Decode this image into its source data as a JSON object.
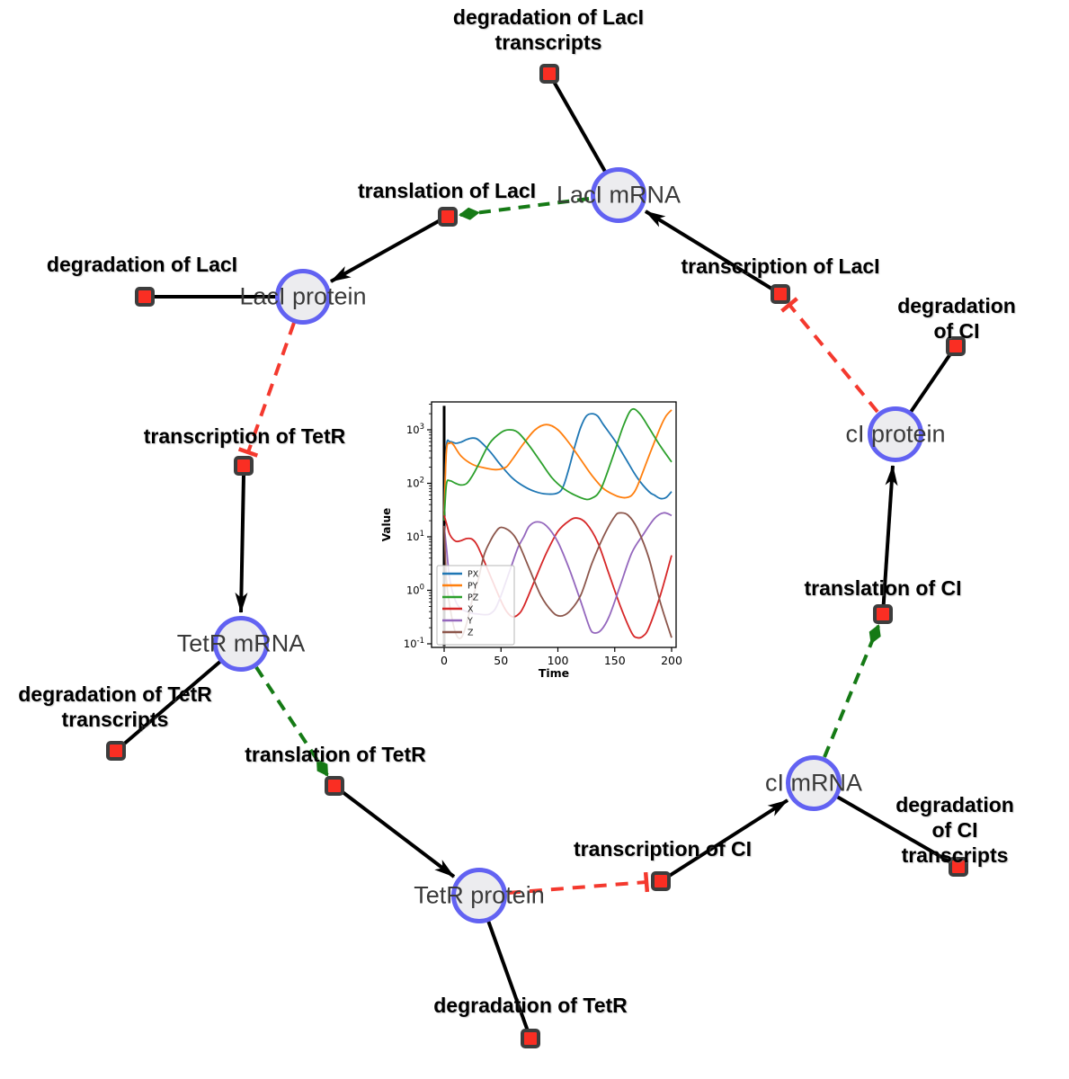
{
  "diagram": {
    "species": [
      {
        "id": "laci-mrna",
        "label": "LacI mRNA"
      },
      {
        "id": "laci-protein",
        "label": "LacI protein"
      },
      {
        "id": "tetr-mrna",
        "label": "TetR mRNA"
      },
      {
        "id": "tetr-protein",
        "label": "TetR protein"
      },
      {
        "id": "ci-mrna",
        "label": "cI mRNA"
      },
      {
        "id": "ci-protein",
        "label": "cI protein"
      }
    ],
    "reactions": [
      {
        "id": "degradation-laci-transcripts",
        "label": "degradation of LacI\ntranscripts"
      },
      {
        "id": "translation-laci",
        "label": "translation of LacI"
      },
      {
        "id": "degradation-laci",
        "label": "degradation of LacI"
      },
      {
        "id": "transcription-laci",
        "label": "transcription of LacI"
      },
      {
        "id": "degradation-ci",
        "label": "degradation of CI"
      },
      {
        "id": "transcription-tetr",
        "label": "transcription of TetR"
      },
      {
        "id": "degradation-tetr-transcripts",
        "label": "degradation of TetR\ntranscripts"
      },
      {
        "id": "translation-tetr",
        "label": "translation of TetR"
      },
      {
        "id": "degradation-tetr",
        "label": "degradation of TetR"
      },
      {
        "id": "transcription-ci",
        "label": "transcription of CI"
      },
      {
        "id": "degradation-ci-transcripts",
        "label": "degradation of CI\ntranscripts"
      },
      {
        "id": "translation-ci",
        "label": "translation of CI"
      }
    ],
    "colors": {
      "species_fill": "#ececef",
      "species_border": "#6262f2",
      "reaction_fill": "#fa2e23",
      "reaction_border": "#3d3d3d",
      "plain_edge": "#000000",
      "activation_edge": "#157a15",
      "inhibition_edge": "#f4392e"
    }
  },
  "chart_data": {
    "type": "line",
    "title": "",
    "xlabel": "Time",
    "ylabel": "Value",
    "x_ticks": [
      0,
      50,
      100,
      150,
      200
    ],
    "xlim": [
      -10,
      210
    ],
    "y_scale": "log",
    "y_tick_exponents": [
      3,
      2,
      1,
      0,
      -1
    ],
    "ylim": [
      0.085,
      3300
    ],
    "grid": false,
    "legend_position": "lower left",
    "time_zero_marker": {
      "t": 0,
      "from": 0.09,
      "to": 2800,
      "color": "#000000"
    },
    "series": [
      {
        "name": "PX",
        "color": "#1f77b4",
        "points": [
          [
            0,
            30
          ],
          [
            2,
            480
          ],
          [
            5,
            600
          ],
          [
            10,
            560
          ],
          [
            15,
            590
          ],
          [
            20,
            660
          ],
          [
            25,
            700
          ],
          [
            30,
            650
          ],
          [
            40,
            400
          ],
          [
            50,
            215
          ],
          [
            60,
            125
          ],
          [
            70,
            88
          ],
          [
            80,
            70
          ],
          [
            90,
            63
          ],
          [
            100,
            66
          ],
          [
            105,
            90
          ],
          [
            110,
            200
          ],
          [
            115,
            500
          ],
          [
            120,
            1100
          ],
          [
            125,
            1800
          ],
          [
            130,
            2000
          ],
          [
            135,
            1800
          ],
          [
            140,
            1250
          ],
          [
            150,
            630
          ],
          [
            160,
            280
          ],
          [
            170,
            125
          ],
          [
            180,
            70
          ],
          [
            185,
            60
          ],
          [
            190,
            52
          ],
          [
            195,
            54
          ],
          [
            200,
            70
          ]
        ]
      },
      {
        "name": "PY",
        "color": "#ff7f0e",
        "points": [
          [
            0,
            25
          ],
          [
            2,
            400
          ],
          [
            5,
            560
          ],
          [
            8,
            530
          ],
          [
            15,
            320
          ],
          [
            25,
            225
          ],
          [
            35,
            195
          ],
          [
            45,
            180
          ],
          [
            50,
            185
          ],
          [
            55,
            205
          ],
          [
            60,
            280
          ],
          [
            70,
            560
          ],
          [
            80,
            1000
          ],
          [
            90,
            1250
          ],
          [
            100,
            1000
          ],
          [
            110,
            560
          ],
          [
            120,
            280
          ],
          [
            130,
            140
          ],
          [
            140,
            80
          ],
          [
            150,
            60
          ],
          [
            155,
            55
          ],
          [
            160,
            54
          ],
          [
            165,
            60
          ],
          [
            170,
            90
          ],
          [
            180,
            320
          ],
          [
            190,
            1100
          ],
          [
            195,
            1800
          ],
          [
            200,
            2350
          ]
        ]
      },
      {
        "name": "PZ",
        "color": "#2ca02c",
        "points": [
          [
            0,
            20
          ],
          [
            2,
            95
          ],
          [
            5,
            112
          ],
          [
            10,
            100
          ],
          [
            15,
            93
          ],
          [
            20,
            100
          ],
          [
            25,
            140
          ],
          [
            30,
            220
          ],
          [
            40,
            560
          ],
          [
            50,
            890
          ],
          [
            57,
            1000
          ],
          [
            65,
            890
          ],
          [
            75,
            500
          ],
          [
            85,
            250
          ],
          [
            95,
            125
          ],
          [
            105,
            80
          ],
          [
            115,
            60
          ],
          [
            125,
            50
          ],
          [
            130,
            53
          ],
          [
            135,
            63
          ],
          [
            140,
            100
          ],
          [
            150,
            400
          ],
          [
            158,
            1250
          ],
          [
            165,
            2400
          ],
          [
            172,
            2000
          ],
          [
            180,
            1100
          ],
          [
            190,
            500
          ],
          [
            200,
            250
          ]
        ]
      },
      {
        "name": "X",
        "color": "#d62728",
        "points": [
          [
            0,
            25
          ],
          [
            2,
            18
          ],
          [
            5,
            11
          ],
          [
            10,
            8.3
          ],
          [
            15,
            8.5
          ],
          [
            20,
            9.3
          ],
          [
            25,
            8.9
          ],
          [
            30,
            6.3
          ],
          [
            40,
            2
          ],
          [
            50,
            0.63
          ],
          [
            55,
            0.4
          ],
          [
            60,
            0.32
          ],
          [
            65,
            0.35
          ],
          [
            70,
            0.5
          ],
          [
            80,
            1.6
          ],
          [
            90,
            5
          ],
          [
            100,
            12.6
          ],
          [
            110,
            20
          ],
          [
            117,
            22.4
          ],
          [
            125,
            17.8
          ],
          [
            135,
            7.9
          ],
          [
            145,
            2
          ],
          [
            155,
            0.5
          ],
          [
            165,
            0.16
          ],
          [
            170,
            0.13
          ],
          [
            175,
            0.14
          ],
          [
            180,
            0.2
          ],
          [
            190,
            0.8
          ],
          [
            200,
            4.5
          ]
        ]
      },
      {
        "name": "Y",
        "color": "#9467bd",
        "points": [
          [
            0,
            16
          ],
          [
            2,
            6.3
          ],
          [
            5,
            1.6
          ],
          [
            10,
            0.63
          ],
          [
            15,
            0.45
          ],
          [
            20,
            0.4
          ],
          [
            25,
            0.37
          ],
          [
            30,
            0.36
          ],
          [
            35,
            0.35
          ],
          [
            40,
            0.36
          ],
          [
            45,
            0.45
          ],
          [
            50,
            0.8
          ],
          [
            55,
            1.6
          ],
          [
            60,
            3.2
          ],
          [
            65,
            6.3
          ],
          [
            70,
            10
          ],
          [
            75,
            16
          ],
          [
            82,
            19
          ],
          [
            90,
            16
          ],
          [
            100,
            8
          ],
          [
            110,
            2.5
          ],
          [
            120,
            0.63
          ],
          [
            128,
            0.2
          ],
          [
            132,
            0.16
          ],
          [
            138,
            0.18
          ],
          [
            145,
            0.32
          ],
          [
            155,
            1.26
          ],
          [
            165,
            5
          ],
          [
            175,
            11
          ],
          [
            185,
            22
          ],
          [
            193,
            28
          ],
          [
            200,
            25
          ]
        ]
      },
      {
        "name": "Z",
        "color": "#8c564b",
        "points": [
          [
            0,
            16
          ],
          [
            2,
            1.6
          ],
          [
            5,
            0.5
          ],
          [
            10,
            0.16
          ],
          [
            15,
            0.13
          ],
          [
            20,
            0.25
          ],
          [
            25,
            0.7
          ],
          [
            30,
            1.6
          ],
          [
            35,
            4.5
          ],
          [
            40,
            7.9
          ],
          [
            45,
            12
          ],
          [
            50,
            15
          ],
          [
            58,
            12.6
          ],
          [
            65,
            7.9
          ],
          [
            75,
            2.5
          ],
          [
            85,
            0.8
          ],
          [
            95,
            0.4
          ],
          [
            102,
            0.33
          ],
          [
            110,
            0.4
          ],
          [
            120,
            0.8
          ],
          [
            130,
            3.2
          ],
          [
            140,
            10
          ],
          [
            150,
            24
          ],
          [
            155,
            28
          ],
          [
            162,
            25
          ],
          [
            170,
            14
          ],
          [
            180,
            4
          ],
          [
            190,
            0.6
          ],
          [
            200,
            0.13
          ]
        ]
      }
    ]
  }
}
